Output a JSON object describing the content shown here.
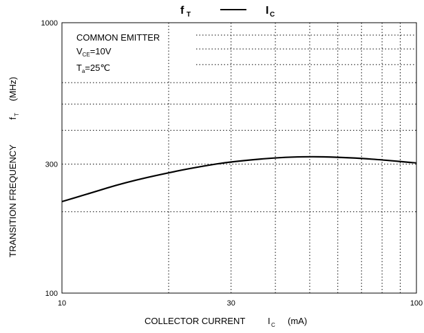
{
  "chart_data": {
    "type": "line",
    "title": {
      "left": "f",
      "left_sub": "T",
      "right": "I",
      "right_sub": "C"
    },
    "xlabel": {
      "text": "COLLECTOR CURRENT",
      "symbol": "I",
      "symbol_sub": "C",
      "unit": "(mA)"
    },
    "ylabel": {
      "text": "TRANSITION FREQUENCY",
      "symbol": "f",
      "symbol_sub": "T",
      "unit": "(MHz)"
    },
    "x_scale": "log",
    "y_scale": "log",
    "xlim": [
      10,
      100
    ],
    "ylim": [
      100,
      1000
    ],
    "x_ticks": [
      10,
      30,
      100
    ],
    "y_ticks": [
      100,
      300,
      1000
    ],
    "grid": true,
    "annotations": {
      "line1": "COMMON EMITTER",
      "line2_main": "V",
      "line2_sub": "CE",
      "line2_rest": "=10V",
      "line3_main": "T",
      "line3_sub": "a",
      "line3_rest": "=25℃"
    },
    "series": [
      {
        "x": [
          10,
          12,
          15,
          20,
          25,
          30,
          40,
          50,
          60,
          70,
          80,
          100
        ],
        "y": [
          218,
          234,
          256,
          279,
          295,
          306,
          317,
          320,
          318,
          315,
          311,
          303
        ]
      }
    ]
  }
}
